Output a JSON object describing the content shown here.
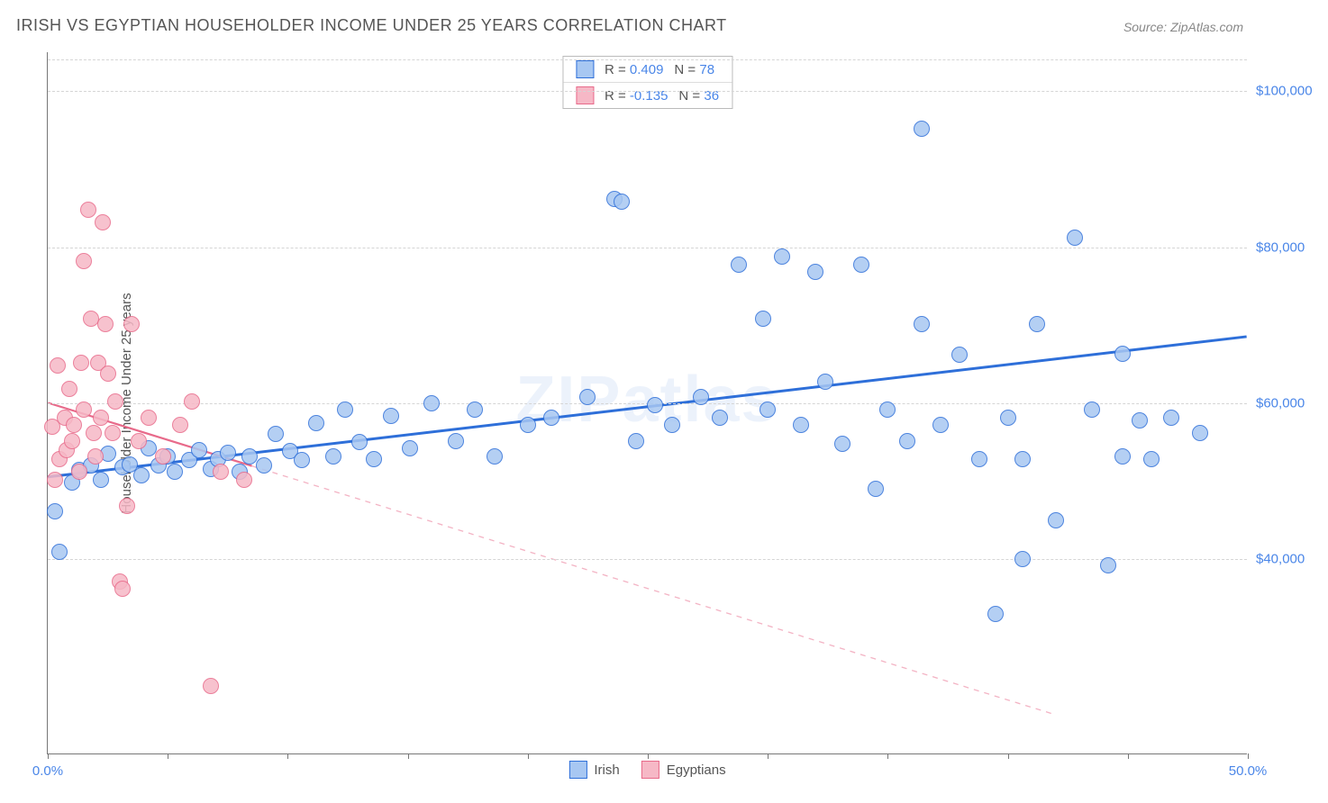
{
  "title": "IRISH VS EGYPTIAN HOUSEHOLDER INCOME UNDER 25 YEARS CORRELATION CHART",
  "source": "Source: ZipAtlas.com",
  "watermark": "ZIPatlas",
  "ylabel": "Householder Income Under 25 years",
  "chart": {
    "type": "scatter",
    "xlim": [
      0,
      50
    ],
    "ylim": [
      15000,
      105000
    ],
    "grid_color": "#d5d5d5",
    "background_color": "#ffffff",
    "xticks_major": [
      0,
      50
    ],
    "xtick_labels": [
      "0.0%",
      "50.0%"
    ],
    "xticks_minor": [
      5,
      10,
      15,
      20,
      25,
      30,
      35,
      40,
      45
    ],
    "yticks": [
      40000,
      60000,
      80000,
      100000
    ],
    "ytick_labels": [
      "$40,000",
      "$60,000",
      "$80,000",
      "$100,000"
    ],
    "marker_radius": 9,
    "marker_stroke_width": 1.5,
    "marker_fill_opacity": 0.35
  },
  "series": [
    {
      "name": "Irish",
      "color_stroke": "#2e6fd9",
      "color_fill": "#a7c7f2",
      "R": "0.409",
      "N": "78",
      "trend": {
        "x1": 0,
        "y1": 50500,
        "x2": 50,
        "y2": 68500,
        "solid_to_x": 50,
        "width": 3
      },
      "points": [
        [
          0.3,
          46200
        ],
        [
          0.5,
          41000
        ],
        [
          1.0,
          49800
        ],
        [
          1.3,
          51500
        ],
        [
          1.8,
          52000
        ],
        [
          2.2,
          50200
        ],
        [
          2.5,
          53500
        ],
        [
          3.1,
          51800
        ],
        [
          3.4,
          52200
        ],
        [
          3.9,
          50800
        ],
        [
          4.2,
          54200
        ],
        [
          4.6,
          52000
        ],
        [
          5.0,
          53200
        ],
        [
          5.3,
          51200
        ],
        [
          5.9,
          52700
        ],
        [
          6.3,
          54000
        ],
        [
          6.8,
          51600
        ],
        [
          7.1,
          52900
        ],
        [
          7.5,
          53700
        ],
        [
          8.0,
          51200
        ],
        [
          8.4,
          53200
        ],
        [
          9.0,
          52000
        ],
        [
          9.5,
          56100
        ],
        [
          10.1,
          53900
        ],
        [
          10.6,
          52700
        ],
        [
          11.2,
          57500
        ],
        [
          11.9,
          53200
        ],
        [
          12.4,
          59200
        ],
        [
          13.0,
          55000
        ],
        [
          13.6,
          52900
        ],
        [
          14.3,
          58400
        ],
        [
          15.1,
          54200
        ],
        [
          16.0,
          60000
        ],
        [
          17.0,
          55200
        ],
        [
          17.8,
          59200
        ],
        [
          18.6,
          53200
        ],
        [
          20.0,
          57200
        ],
        [
          21.0,
          58200
        ],
        [
          22.5,
          60800
        ],
        [
          23.6,
          86200
        ],
        [
          23.9,
          85800
        ],
        [
          24.5,
          55200
        ],
        [
          25.3,
          59800
        ],
        [
          26.0,
          57200
        ],
        [
          27.2,
          60800
        ],
        [
          28.0,
          58200
        ],
        [
          28.8,
          77800
        ],
        [
          29.8,
          70800
        ],
        [
          30.0,
          59200
        ],
        [
          30.6,
          78800
        ],
        [
          31.4,
          57200
        ],
        [
          32.0,
          76800
        ],
        [
          32.4,
          62800
        ],
        [
          33.1,
          54800
        ],
        [
          33.9,
          77800
        ],
        [
          34.5,
          49000
        ],
        [
          35.0,
          59200
        ],
        [
          35.8,
          55200
        ],
        [
          36.4,
          95200
        ],
        [
          36.4,
          70200
        ],
        [
          37.2,
          57200
        ],
        [
          38.0,
          66200
        ],
        [
          38.8,
          52800
        ],
        [
          39.5,
          33000
        ],
        [
          40.0,
          58200
        ],
        [
          40.6,
          52800
        ],
        [
          40.6,
          40000
        ],
        [
          41.2,
          70200
        ],
        [
          42.0,
          45000
        ],
        [
          42.8,
          81200
        ],
        [
          43.5,
          59200
        ],
        [
          44.2,
          39200
        ],
        [
          44.8,
          53200
        ],
        [
          44.8,
          66300
        ],
        [
          45.5,
          57800
        ],
        [
          46.0,
          52800
        ],
        [
          46.8,
          58200
        ],
        [
          48.0,
          56200
        ]
      ]
    },
    {
      "name": "Egyptians",
      "color_stroke": "#e86a8a",
      "color_fill": "#f6b8c6",
      "R": "-0.135",
      "N": "36",
      "trend": {
        "x1": 0,
        "y1": 60000,
        "x2": 42,
        "y2": 20000,
        "solid_to_x": 8.5,
        "width": 2.2
      },
      "points": [
        [
          0.2,
          57000
        ],
        [
          0.3,
          50200
        ],
        [
          0.4,
          64800
        ],
        [
          0.5,
          52800
        ],
        [
          0.7,
          58200
        ],
        [
          0.8,
          54000
        ],
        [
          0.9,
          61800
        ],
        [
          1.0,
          55200
        ],
        [
          1.1,
          57200
        ],
        [
          1.3,
          51200
        ],
        [
          1.4,
          65200
        ],
        [
          1.5,
          78200
        ],
        [
          1.5,
          59200
        ],
        [
          1.7,
          84800
        ],
        [
          1.8,
          70800
        ],
        [
          1.9,
          56200
        ],
        [
          2.0,
          53200
        ],
        [
          2.1,
          65200
        ],
        [
          2.2,
          58200
        ],
        [
          2.3,
          83200
        ],
        [
          2.4,
          70200
        ],
        [
          2.5,
          63800
        ],
        [
          2.7,
          56200
        ],
        [
          2.8,
          60200
        ],
        [
          3.0,
          37200
        ],
        [
          3.1,
          36200
        ],
        [
          3.3,
          46800
        ],
        [
          3.5,
          70200
        ],
        [
          3.8,
          55200
        ],
        [
          4.2,
          58200
        ],
        [
          4.8,
          53200
        ],
        [
          5.5,
          57200
        ],
        [
          6.0,
          60200
        ],
        [
          6.8,
          23800
        ],
        [
          7.2,
          51200
        ],
        [
          8.2,
          50200
        ]
      ]
    }
  ],
  "legend_series": [
    "Irish",
    "Egyptians"
  ]
}
